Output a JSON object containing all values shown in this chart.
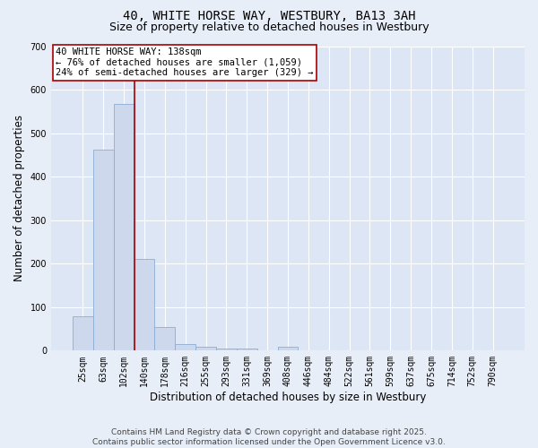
{
  "title": "40, WHITE HORSE WAY, WESTBURY, BA13 3AH",
  "subtitle": "Size of property relative to detached houses in Westbury",
  "xlabel": "Distribution of detached houses by size in Westbury",
  "ylabel": "Number of detached properties",
  "categories": [
    "25sqm",
    "63sqm",
    "102sqm",
    "140sqm",
    "178sqm",
    "216sqm",
    "255sqm",
    "293sqm",
    "331sqm",
    "369sqm",
    "408sqm",
    "446sqm",
    "484sqm",
    "522sqm",
    "561sqm",
    "599sqm",
    "637sqm",
    "675sqm",
    "714sqm",
    "752sqm",
    "790sqm"
  ],
  "values": [
    78,
    463,
    568,
    210,
    55,
    16,
    8,
    5,
    5,
    0,
    8,
    0,
    0,
    0,
    0,
    0,
    0,
    0,
    0,
    0,
    0
  ],
  "bar_color": "#cdd8ed",
  "bar_edge_color": "#8aadd4",
  "vline_x": 2.5,
  "vline_color": "#aa0000",
  "annotation_line1": "40 WHITE HORSE WAY: 138sqm",
  "annotation_line2": "← 76% of detached houses are smaller (1,059)",
  "annotation_line3": "24% of semi-detached houses are larger (329) →",
  "annotation_box_facecolor": "#ffffff",
  "annotation_box_edgecolor": "#aa0000",
  "ylim": [
    0,
    700
  ],
  "yticks": [
    0,
    100,
    200,
    300,
    400,
    500,
    600,
    700
  ],
  "footer_line1": "Contains HM Land Registry data © Crown copyright and database right 2025.",
  "footer_line2": "Contains public sector information licensed under the Open Government Licence v3.0.",
  "bg_color": "#e8eef8",
  "plot_bg_color": "#dce6f5",
  "grid_color": "#ffffff",
  "title_fontsize": 10,
  "subtitle_fontsize": 9,
  "axis_label_fontsize": 8.5,
  "tick_fontsize": 7,
  "annotation_fontsize": 7.5,
  "footer_fontsize": 6.5
}
